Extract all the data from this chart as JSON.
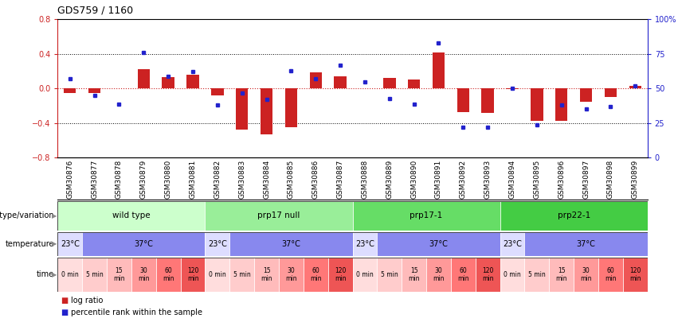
{
  "title": "GDS759 / 1160",
  "samples": [
    "GSM30876",
    "GSM30877",
    "GSM30878",
    "GSM30879",
    "GSM30880",
    "GSM30881",
    "GSM30882",
    "GSM30883",
    "GSM30884",
    "GSM30885",
    "GSM30886",
    "GSM30887",
    "GSM30888",
    "GSM30889",
    "GSM30890",
    "GSM30891",
    "GSM30892",
    "GSM30893",
    "GSM30894",
    "GSM30895",
    "GSM30896",
    "GSM30897",
    "GSM30898",
    "GSM30899"
  ],
  "log_ratio": [
    -0.05,
    -0.05,
    0.0,
    0.22,
    0.13,
    0.16,
    -0.08,
    -0.47,
    -0.53,
    -0.45,
    0.19,
    0.14,
    0.0,
    0.12,
    0.1,
    0.42,
    -0.27,
    -0.28,
    -0.01,
    -0.37,
    -0.37,
    -0.15,
    -0.1,
    0.03
  ],
  "percentile": [
    57,
    45,
    39,
    76,
    59,
    62,
    38,
    47,
    42,
    63,
    57,
    67,
    55,
    43,
    39,
    83,
    22,
    22,
    50,
    24,
    38,
    35,
    37,
    52
  ],
  "bar_color": "#cc2222",
  "dot_color": "#2222cc",
  "ylim_left": [
    -0.8,
    0.8
  ],
  "ylim_right": [
    0,
    100
  ],
  "yticks_left": [
    -0.8,
    -0.4,
    0.0,
    0.4,
    0.8
  ],
  "yticks_right": [
    0,
    25,
    50,
    75,
    100
  ],
  "ytick_labels_right": [
    "0",
    "25",
    "50",
    "75",
    "100%"
  ],
  "hline_color": "#cc2222",
  "bg_color": "#ffffff",
  "genotype_groups": [
    {
      "label": "wild type",
      "start": 0,
      "end": 6,
      "color": "#ccffcc"
    },
    {
      "label": "prp17 null",
      "start": 6,
      "end": 12,
      "color": "#99ee99"
    },
    {
      "label": "prp17-1",
      "start": 12,
      "end": 18,
      "color": "#66dd66"
    },
    {
      "label": "prp22-1",
      "start": 18,
      "end": 24,
      "color": "#44cc44"
    }
  ],
  "temperature_groups": [
    {
      "label": "23°C",
      "start": 0,
      "end": 1,
      "color": "#ddddff"
    },
    {
      "label": "37°C",
      "start": 1,
      "end": 6,
      "color": "#8888ee"
    },
    {
      "label": "23°C",
      "start": 6,
      "end": 7,
      "color": "#ddddff"
    },
    {
      "label": "37°C",
      "start": 7,
      "end": 12,
      "color": "#8888ee"
    },
    {
      "label": "23°C",
      "start": 12,
      "end": 13,
      "color": "#ddddff"
    },
    {
      "label": "37°C",
      "start": 13,
      "end": 18,
      "color": "#8888ee"
    },
    {
      "label": "23°C",
      "start": 18,
      "end": 19,
      "color": "#ddddff"
    },
    {
      "label": "37°C",
      "start": 19,
      "end": 24,
      "color": "#8888ee"
    }
  ],
  "time_labels": [
    "0 min",
    "5 min",
    "15\nmin",
    "30\nmin",
    "60\nmin",
    "120\nmin",
    "0 min",
    "5 min",
    "15\nmin",
    "30\nmin",
    "60\nmin",
    "120\nmin",
    "0 min",
    "5 min",
    "15\nmin",
    "30\nmin",
    "60\nmin",
    "120\nmin",
    "0 min",
    "5 min",
    "15\nmin",
    "30\nmin",
    "60\nmin",
    "120\nmin"
  ],
  "time_colors": [
    "#ffdddd",
    "#ffcccc",
    "#ffbbbb",
    "#ff9999",
    "#ff7777",
    "#ee5555",
    "#ffdddd",
    "#ffcccc",
    "#ffbbbb",
    "#ff9999",
    "#ff7777",
    "#ee5555",
    "#ffdddd",
    "#ffcccc",
    "#ffbbbb",
    "#ff9999",
    "#ff7777",
    "#ee5555",
    "#ffdddd",
    "#ffcccc",
    "#ffbbbb",
    "#ff9999",
    "#ff7777",
    "#ee5555"
  ],
  "legend_log_ratio_color": "#cc2222",
  "legend_percentile_color": "#2222cc"
}
